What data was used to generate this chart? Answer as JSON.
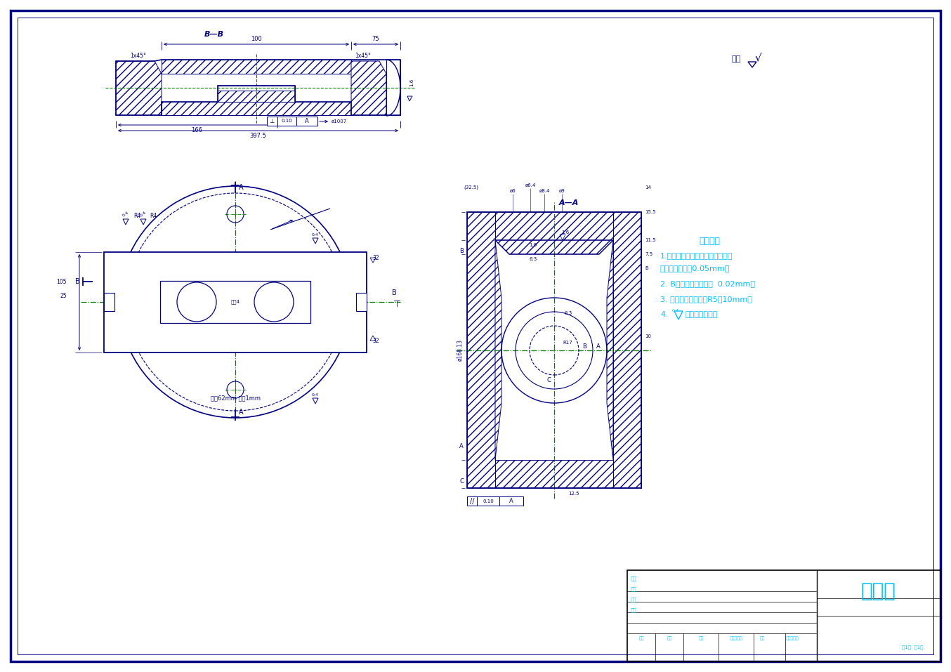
{
  "bg_color": "#ffffff",
  "line_color": "#000080",
  "center_line_color": "#008000",
  "dim_color": "#000080",
  "cyan_color": "#00BFFF",
  "title": "零件图",
  "section_label_BB": "B—B",
  "section_label_AA": "A—A",
  "remainder_label": "其余",
  "tech_req_title": "技术要求",
  "tech_req_1a": "1.燕尾导轨在用样板检查时不得有",
  "tech_req_1b": "间隙（塞尺检）0.05mm。",
  "tech_req_2": "2. B面纵向的不平行度  0.02mm。",
  "tech_req_3": "3. 未注明的铸造圆角R5～10mm。",
  "tech_req_4a": "4.",
  "tech_req_4b": "表面抛光处理。",
  "surface_finish_val": "0.4",
  "page_info": "共1张  第1张"
}
